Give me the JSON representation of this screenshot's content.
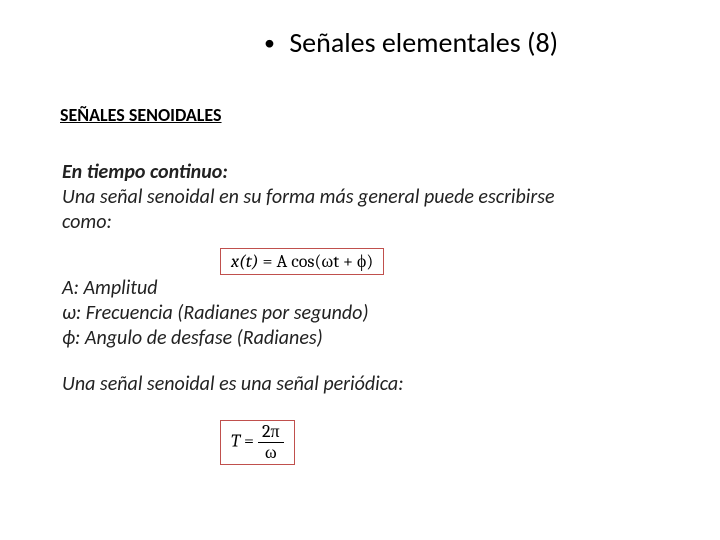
{
  "title": {
    "bullet": "•",
    "text": "Señales elementales (8)",
    "fontsize": 28,
    "color": "#000000"
  },
  "subheading": {
    "text": "SEÑALES SENOIDALES",
    "fontsize": 18,
    "font_weight": 700,
    "underline": true,
    "color": "#000000"
  },
  "body": {
    "heading": "En tiempo continuo:",
    "intro_line1": "Una señal senoidal en su forma más general puede escribirse",
    "intro_line2": "como:",
    "heading_italic": true,
    "heading_bold": true,
    "body_italic": true,
    "fontsize": 20,
    "color": "#222222"
  },
  "formula1": {
    "lhs": "x(t)",
    "eq": " = ",
    "rhs": "A cos(ωt  +  ϕ)",
    "border_color": "#c0504d",
    "font_family": "Cambria, Times New Roman, serif",
    "fontsize": 18,
    "background": "#ffffff"
  },
  "definitions": {
    "line1": "A: Amplitud",
    "line2": "ω: Frecuencia (Radianes por segundo)",
    "line3": "ϕ: Angulo de desfase (Radianes)",
    "fontsize": 20,
    "italic": true,
    "color": "#222222"
  },
  "periodic": {
    "text": "Una señal senoidal es una señal periódica:",
    "fontsize": 20,
    "italic": true,
    "color": "#222222"
  },
  "formula2": {
    "lhs": "T",
    "eq": " = ",
    "numerator": "2π",
    "denominator": "ω",
    "border_color": "#c0504d",
    "font_family": "Cambria, Times New Roman, serif",
    "fontsize": 18,
    "background": "#ffffff"
  },
  "layout": {
    "slide_width": 720,
    "slide_height": 540,
    "background_color": "#ffffff"
  }
}
